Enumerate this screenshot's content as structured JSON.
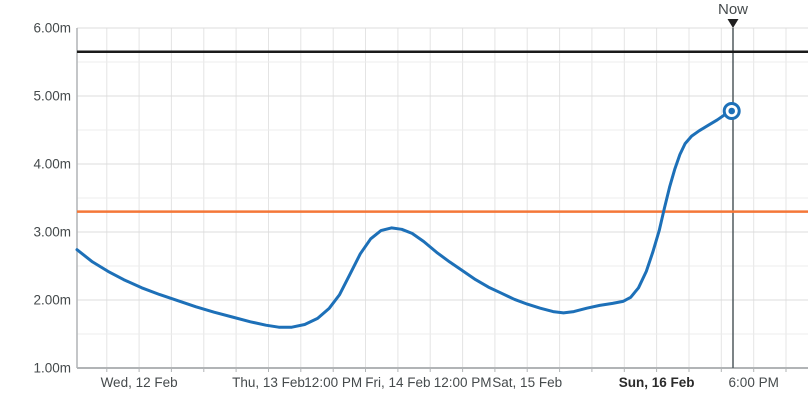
{
  "chart_data": {
    "type": "line",
    "title": "",
    "now_label": "Now",
    "y_axis": {
      "unit": "m",
      "min": 1,
      "max": 6,
      "major_step": 1,
      "minor_step": 0.5,
      "ticks": [
        {
          "value": 6,
          "label": "6.00m"
        },
        {
          "value": 5,
          "label": "5.00m"
        },
        {
          "value": 4,
          "label": "4.00m"
        },
        {
          "value": 3,
          "label": "3.00m"
        },
        {
          "value": 2,
          "label": "2.00m"
        },
        {
          "value": 1,
          "label": "1.00m"
        }
      ]
    },
    "x_axis": {
      "start_day_offset": -0.48,
      "end_day_offset": 5.17,
      "gridline_step_days": 0.25,
      "ticks": [
        {
          "day": 0,
          "label": "Wed, 12 Feb",
          "bold": false
        },
        {
          "day": 1,
          "label": "Thu, 13 Feb",
          "bold": false
        },
        {
          "day": 1.5,
          "label": "12:00 PM",
          "bold": false
        },
        {
          "day": 2,
          "label": "Fri, 14 Feb",
          "bold": false
        },
        {
          "day": 2.5,
          "label": "12:00 PM",
          "bold": false
        },
        {
          "day": 3,
          "label": "Sat, 15 Feb",
          "bold": false
        },
        {
          "day": 4,
          "label": "Sun, 16 Feb",
          "bold": true
        },
        {
          "day": 4.75,
          "label": "6:00 PM",
          "bold": false
        }
      ]
    },
    "reference_lines": [
      {
        "id": "upper-reference-line",
        "value": 5.65,
        "color": "#1a1a1a",
        "width": 2.5
      },
      {
        "id": "lower-reference-line",
        "value": 3.3,
        "color": "#f47738",
        "width": 2.5
      }
    ],
    "now_line": {
      "day": 4.59,
      "color": "#505a5f"
    },
    "latest_reading": {
      "day": 4.58,
      "value": 4.78
    },
    "series": [
      {
        "name": "level",
        "color": "#1d70b8",
        "width": 3,
        "points": [
          [
            -0.48,
            2.74
          ],
          [
            -0.36,
            2.56
          ],
          [
            -0.24,
            2.42
          ],
          [
            -0.12,
            2.3
          ],
          [
            0.02,
            2.18
          ],
          [
            0.16,
            2.08
          ],
          [
            0.3,
            1.99
          ],
          [
            0.44,
            1.9
          ],
          [
            0.58,
            1.82
          ],
          [
            0.72,
            1.75
          ],
          [
            0.86,
            1.68
          ],
          [
            0.98,
            1.63
          ],
          [
            1.08,
            1.6
          ],
          [
            1.18,
            1.6
          ],
          [
            1.28,
            1.64
          ],
          [
            1.38,
            1.73
          ],
          [
            1.47,
            1.88
          ],
          [
            1.55,
            2.08
          ],
          [
            1.63,
            2.38
          ],
          [
            1.71,
            2.68
          ],
          [
            1.79,
            2.9
          ],
          [
            1.87,
            3.02
          ],
          [
            1.95,
            3.06
          ],
          [
            2.03,
            3.04
          ],
          [
            2.11,
            2.98
          ],
          [
            2.2,
            2.86
          ],
          [
            2.3,
            2.7
          ],
          [
            2.4,
            2.56
          ],
          [
            2.5,
            2.43
          ],
          [
            2.6,
            2.3
          ],
          [
            2.7,
            2.19
          ],
          [
            2.8,
            2.1
          ],
          [
            2.9,
            2.01
          ],
          [
            3.0,
            1.94
          ],
          [
            3.1,
            1.88
          ],
          [
            3.2,
            1.83
          ],
          [
            3.28,
            1.81
          ],
          [
            3.36,
            1.83
          ],
          [
            3.46,
            1.88
          ],
          [
            3.56,
            1.92
          ],
          [
            3.66,
            1.95
          ],
          [
            3.74,
            1.98
          ],
          [
            3.8,
            2.04
          ],
          [
            3.86,
            2.18
          ],
          [
            3.92,
            2.42
          ],
          [
            3.97,
            2.7
          ],
          [
            4.02,
            3.02
          ],
          [
            4.06,
            3.35
          ],
          [
            4.1,
            3.66
          ],
          [
            4.14,
            3.92
          ],
          [
            4.18,
            4.14
          ],
          [
            4.22,
            4.3
          ],
          [
            4.27,
            4.41
          ],
          [
            4.33,
            4.49
          ],
          [
            4.4,
            4.57
          ],
          [
            4.47,
            4.65
          ],
          [
            4.53,
            4.73
          ],
          [
            4.58,
            4.78
          ]
        ]
      }
    ],
    "colors": {
      "grid_vertical": "#e4e4e4",
      "grid_major": "#dcdcdc",
      "grid_minor": "#ececec",
      "axis": "#b1b4b6",
      "marker_fill": "#ffffff",
      "marker_stroke": "#1d70b8",
      "now_triangle": "#1f1f1f"
    }
  }
}
